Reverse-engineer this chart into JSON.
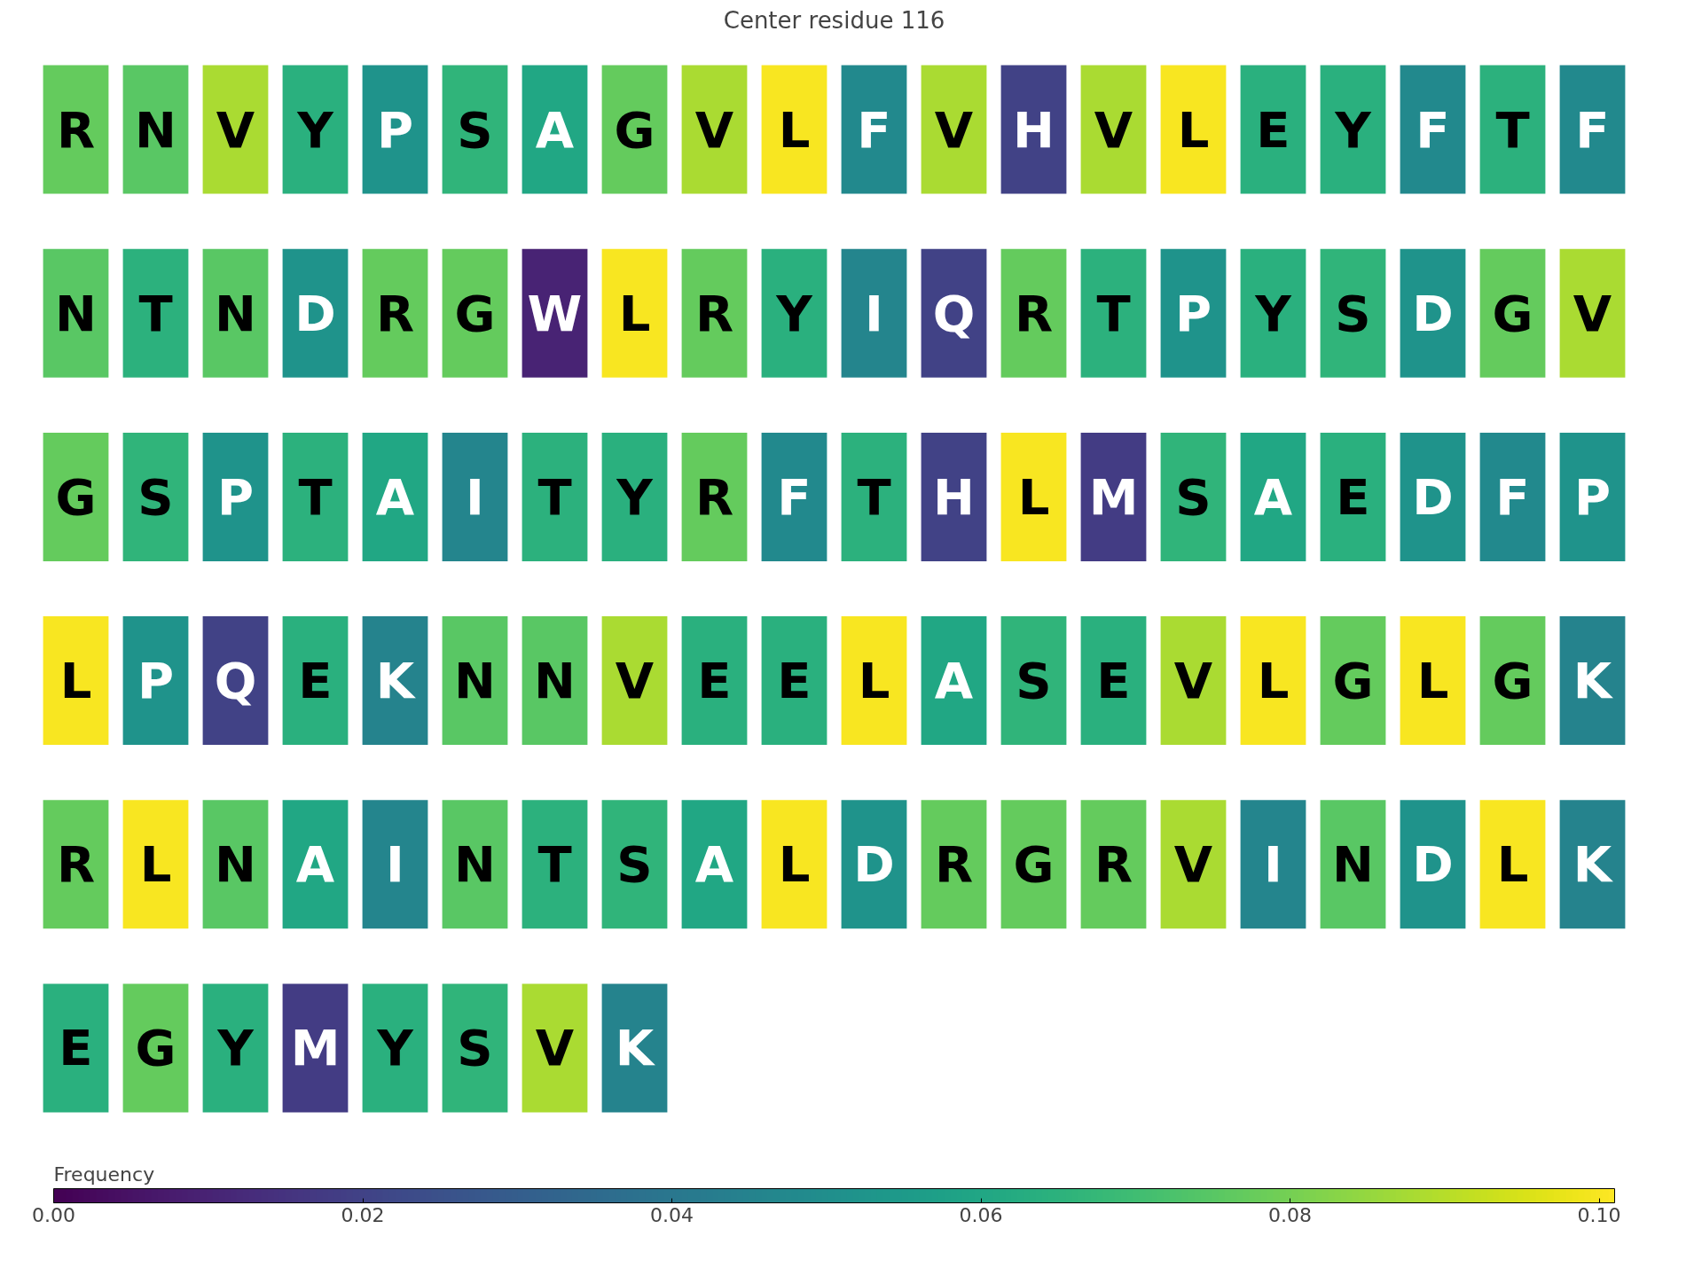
{
  "chart_data": {
    "type": "heatmap",
    "title": "Center residue 116",
    "clabel": "Frequency",
    "categories": [
      null,
      null,
      null,
      null,
      null,
      null,
      null,
      null,
      null,
      null,
      null,
      null,
      null,
      null,
      null,
      null,
      null,
      null,
      null,
      null
    ],
    "y_categories": [
      null,
      null,
      null,
      null,
      null,
      null
    ],
    "cells": [
      [
        0.077,
        0.075,
        0.088,
        0.064,
        0.052,
        0.066,
        0.06,
        0.077,
        0.088,
        0.1,
        0.048,
        0.088,
        0.02,
        0.088,
        0.1,
        0.064,
        0.064,
        0.048,
        0.065,
        0.048
      ],
      [
        0.075,
        0.065,
        0.075,
        0.052,
        0.077,
        0.077,
        0.01,
        0.1,
        0.077,
        0.064,
        0.046,
        0.02,
        0.077,
        0.065,
        0.052,
        0.064,
        0.066,
        0.052,
        0.077,
        0.088
      ],
      [
        0.077,
        0.066,
        0.052,
        0.065,
        0.06,
        0.046,
        0.065,
        0.064,
        0.077,
        0.048,
        0.065,
        0.02,
        0.1,
        0.018,
        0.066,
        0.06,
        0.064,
        0.052,
        0.048,
        0.052
      ],
      [
        0.1,
        0.052,
        0.02,
        0.064,
        0.045,
        0.075,
        0.075,
        0.088,
        0.064,
        0.064,
        0.1,
        0.06,
        0.066,
        0.064,
        0.088,
        0.1,
        0.077,
        0.1,
        0.077,
        0.045
      ],
      [
        0.077,
        0.1,
        0.075,
        0.06,
        0.046,
        0.075,
        0.065,
        0.066,
        0.06,
        0.1,
        0.052,
        0.077,
        0.077,
        0.077,
        0.088,
        0.046,
        0.075,
        0.052,
        0.1,
        0.045
      ],
      [
        0.064,
        0.077,
        0.064,
        0.018,
        0.064,
        0.066,
        0.088,
        0.045,
        null,
        null,
        null,
        null,
        null,
        null,
        null,
        null,
        null,
        null,
        null,
        null
      ]
    ],
    "cell_labels": [
      [
        "R",
        "N",
        "V",
        "Y",
        "P",
        "S",
        "A",
        "G",
        "V",
        "L",
        "F",
        "V",
        "H",
        "V",
        "L",
        "E",
        "Y",
        "F",
        "T",
        "F"
      ],
      [
        "N",
        "T",
        "N",
        "D",
        "R",
        "G",
        "W",
        "L",
        "R",
        "Y",
        "I",
        "Q",
        "R",
        "T",
        "P",
        "Y",
        "S",
        "D",
        "G",
        "V"
      ],
      [
        "G",
        "S",
        "P",
        "T",
        "A",
        "I",
        "T",
        "Y",
        "R",
        "F",
        "T",
        "H",
        "L",
        "M",
        "S",
        "A",
        "E",
        "D",
        "F",
        "P"
      ],
      [
        "L",
        "P",
        "Q",
        "E",
        "K",
        "N",
        "N",
        "V",
        "E",
        "E",
        "L",
        "A",
        "S",
        "E",
        "V",
        "L",
        "G",
        "L",
        "G",
        "K"
      ],
      [
        "R",
        "L",
        "N",
        "A",
        "I",
        "N",
        "T",
        "S",
        "A",
        "L",
        "D",
        "R",
        "G",
        "R",
        "V",
        "I",
        "N",
        "D",
        "L",
        "K"
      ],
      [
        "E",
        "G",
        "Y",
        "M",
        "Y",
        "S",
        "V",
        "K",
        null,
        null,
        null,
        null,
        null,
        null,
        null,
        null,
        null,
        null,
        null,
        null
      ]
    ],
    "clim": [
      0,
      0.101
    ],
    "cticks": [
      {
        "value": 0,
        "label": "0.00"
      },
      {
        "value": 0.02,
        "label": "0.02"
      },
      {
        "value": 0.04,
        "label": "0.04"
      },
      {
        "value": 0.06,
        "label": "0.06"
      },
      {
        "value": 0.08,
        "label": "0.08"
      },
      {
        "value": 0.1,
        "label": "0.10"
      }
    ]
  }
}
